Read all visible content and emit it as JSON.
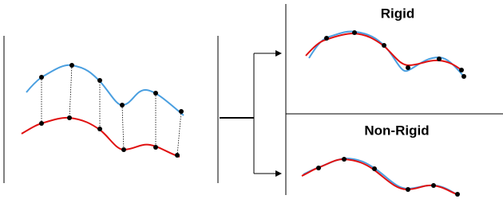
{
  "labels": {
    "rigid": "Rigid",
    "non_rigid": "Non-Rigid"
  }
}
